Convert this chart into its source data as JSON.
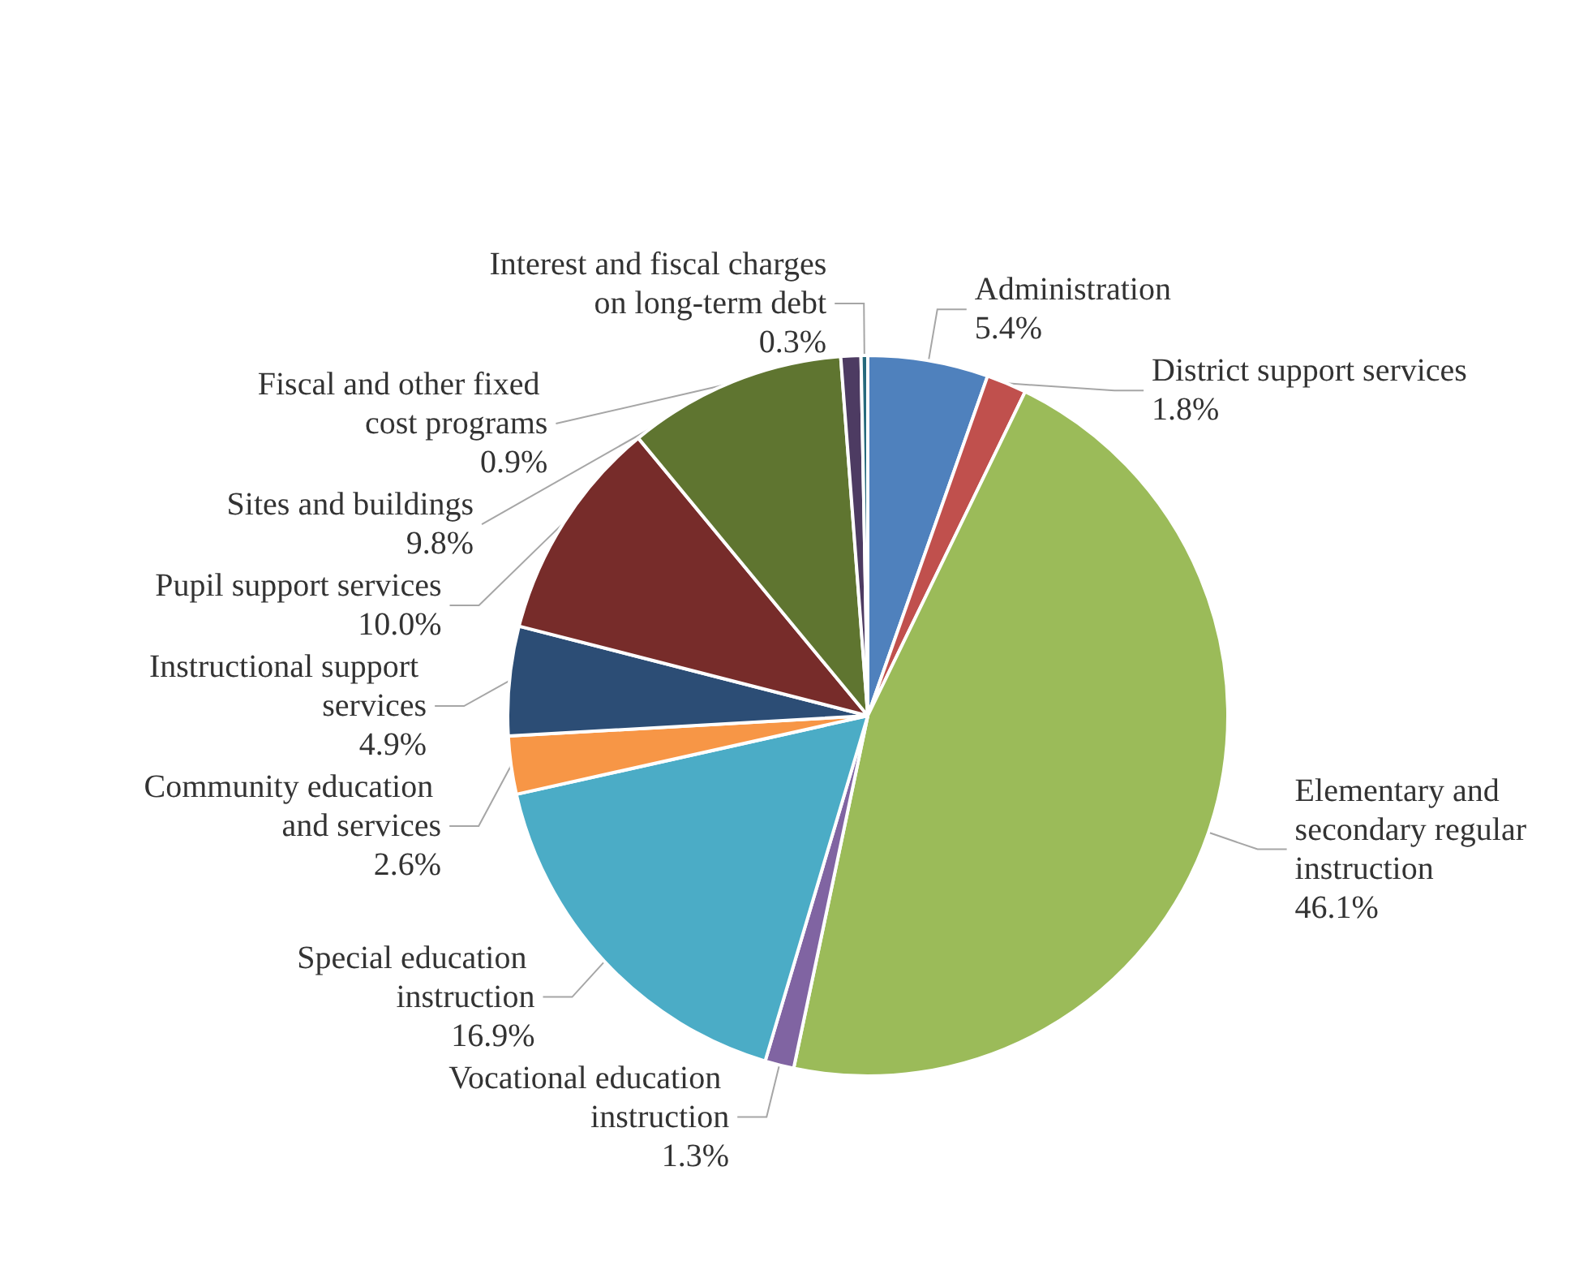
{
  "chart_data": {
    "type": "pie",
    "categories": [
      "Administration",
      "District support services",
      "Elementary and secondary regular instruction",
      "Vocational education instruction",
      "Special education instruction",
      "Community education and services",
      "Instructional support services",
      "Pupil support services",
      "Sites and buildings",
      "Fiscal and other fixed cost programs",
      "Interest and fiscal charges on long-term debt"
    ],
    "values": [
      5.4,
      1.8,
      46.1,
      1.3,
      16.9,
      2.6,
      4.9,
      10.0,
      9.8,
      0.9,
      0.3
    ],
    "value_labels": [
      "5.4%",
      "1.8%",
      "46.1%",
      "1.3%",
      "16.9%",
      "2.6%",
      "4.9%",
      "10.0%",
      "9.8%",
      "0.9%",
      "0.3%"
    ],
    "colors": [
      "#4f81bd",
      "#c0504d",
      "#9bbb59",
      "#8064a2",
      "#4bacc6",
      "#f79646",
      "#2c4d75",
      "#772c2a",
      "#5f7530",
      "#4d3b62",
      "#276a7c"
    ],
    "legend": false
  }
}
